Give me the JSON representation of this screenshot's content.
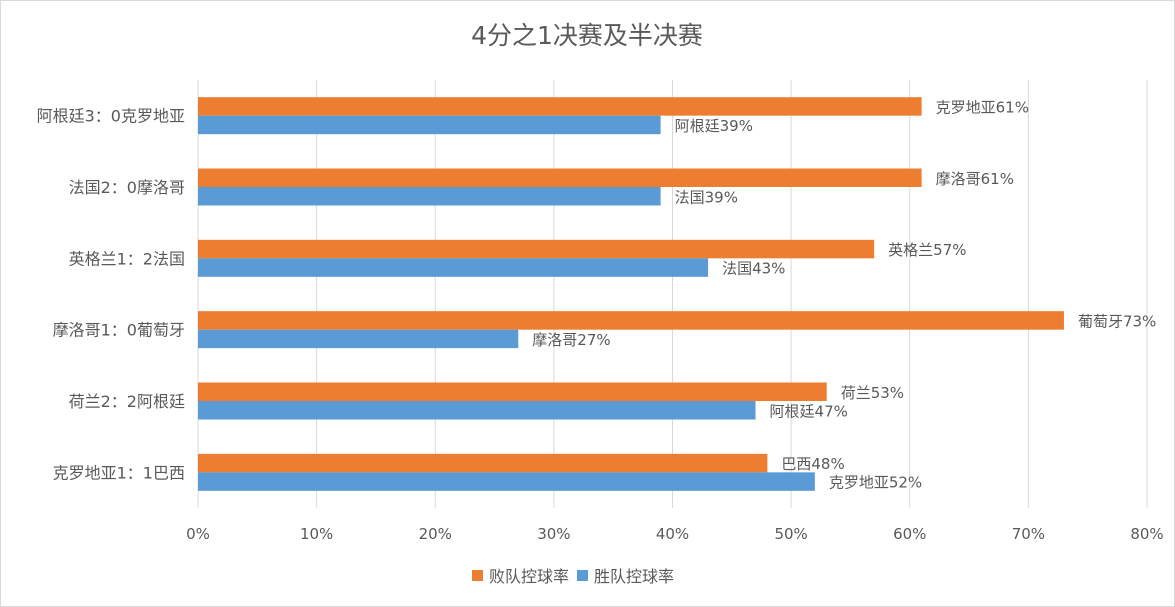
{
  "chart_data": {
    "type": "bar",
    "orientation": "horizontal",
    "title": "4分之1决赛及半决赛",
    "categories": [
      "阿根廷3：0克罗地亚",
      "法国2：0摩洛哥",
      "英格兰1：2法国",
      "摩洛哥1：0葡萄牙",
      "荷兰2：2阿根廷",
      "克罗地亚1：1巴西"
    ],
    "series": [
      {
        "name": "败队控球率",
        "color": "#ED7D31",
        "values": [
          61,
          61,
          57,
          73,
          53,
          48
        ],
        "labels": [
          "克罗地亚61%",
          "摩洛哥61%",
          "英格兰57%",
          "葡萄牙73%",
          "荷兰53%",
          "巴西48%"
        ]
      },
      {
        "name": "胜队控球率",
        "color": "#5B9BD5",
        "values": [
          39,
          39,
          43,
          27,
          47,
          52
        ],
        "labels": [
          "阿根廷39%",
          "法国39%",
          "法国43%",
          "摩洛哥27%",
          "阿根廷47%",
          "克罗地亚52%"
        ]
      }
    ],
    "xlim": [
      0,
      80
    ],
    "xticks": [
      "0%",
      "10%",
      "20%",
      "30%",
      "40%",
      "50%",
      "60%",
      "70%",
      "80%"
    ],
    "grid": true,
    "legend": "bottom"
  }
}
